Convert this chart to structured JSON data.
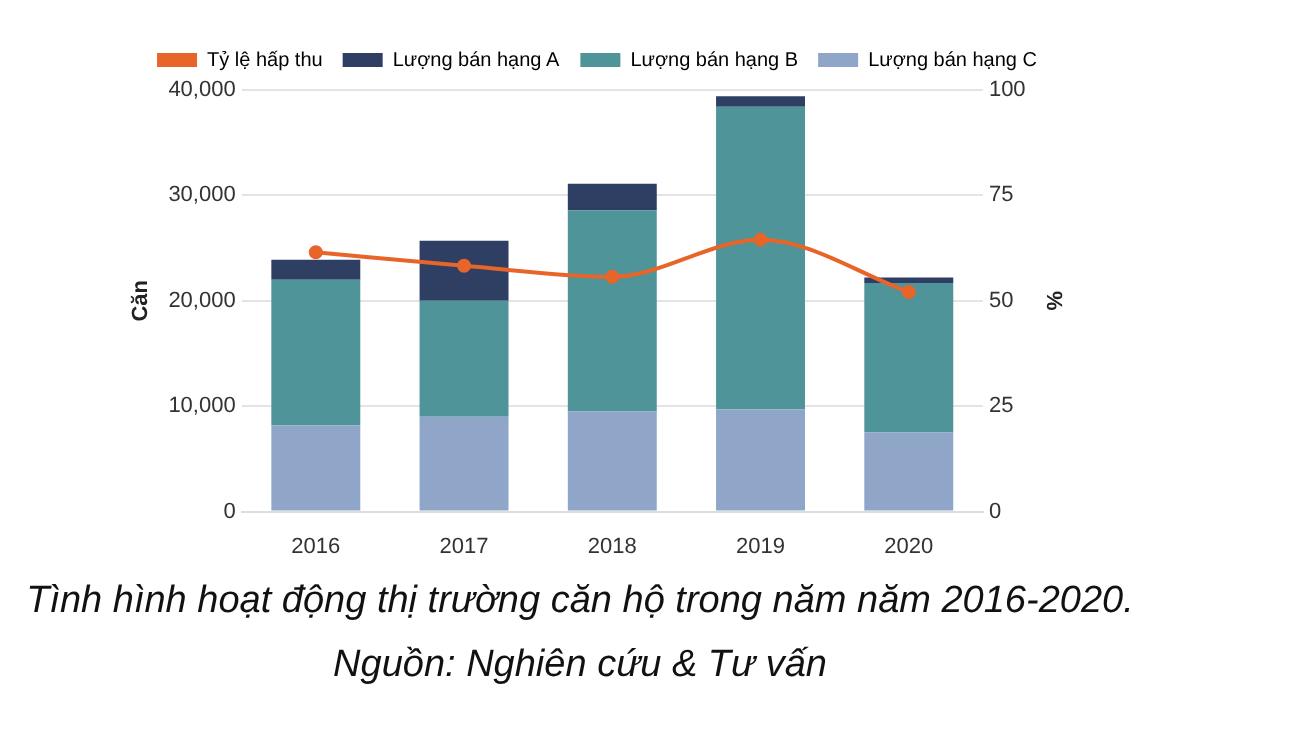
{
  "chart_data": {
    "type": "bar",
    "stacked": true,
    "categories": [
      "2016",
      "2017",
      "2018",
      "2019",
      "2020"
    ],
    "series": [
      {
        "name": "Lượng bán hạng C",
        "color": "#8fa6c9",
        "values": [
          8200,
          9000,
          9500,
          9700,
          7500
        ]
      },
      {
        "name": "Lượng bán hạng B",
        "color": "#4e9499",
        "values": [
          13800,
          11000,
          19100,
          28700,
          14200
        ]
      },
      {
        "name": "Lượng bán hạng A",
        "color": "#2e3f63",
        "values": [
          1900,
          5700,
          2500,
          1000,
          500
        ]
      },
      {
        "name": "Tỷ lệ hấp thu",
        "type": "line",
        "axis": "y2",
        "color": "#e8652a",
        "marker": "circle",
        "values": [
          61.5,
          58.3,
          55.7,
          64.5,
          52.1
        ]
      }
    ],
    "ylabel": "Căn",
    "y2label": "%",
    "ylim": [
      0,
      40000
    ],
    "yticks": [
      {
        "value": 0,
        "label": "0"
      },
      {
        "value": 10000,
        "label": "10,000"
      },
      {
        "value": 20000,
        "label": "20,000"
      },
      {
        "value": 30000,
        "label": "30,000"
      },
      {
        "value": 40000,
        "label": "40,000"
      }
    ],
    "y2lim": [
      0,
      100
    ],
    "y2ticks": [
      0,
      25,
      50,
      75,
      100
    ],
    "grid": "y",
    "legend": "top",
    "annotations": [
      "Tình hình hoạt động thị trường căn hộ trong năm năm 2016-2020. Nguồn: Nghiên cứu & Tư vấn"
    ]
  }
}
